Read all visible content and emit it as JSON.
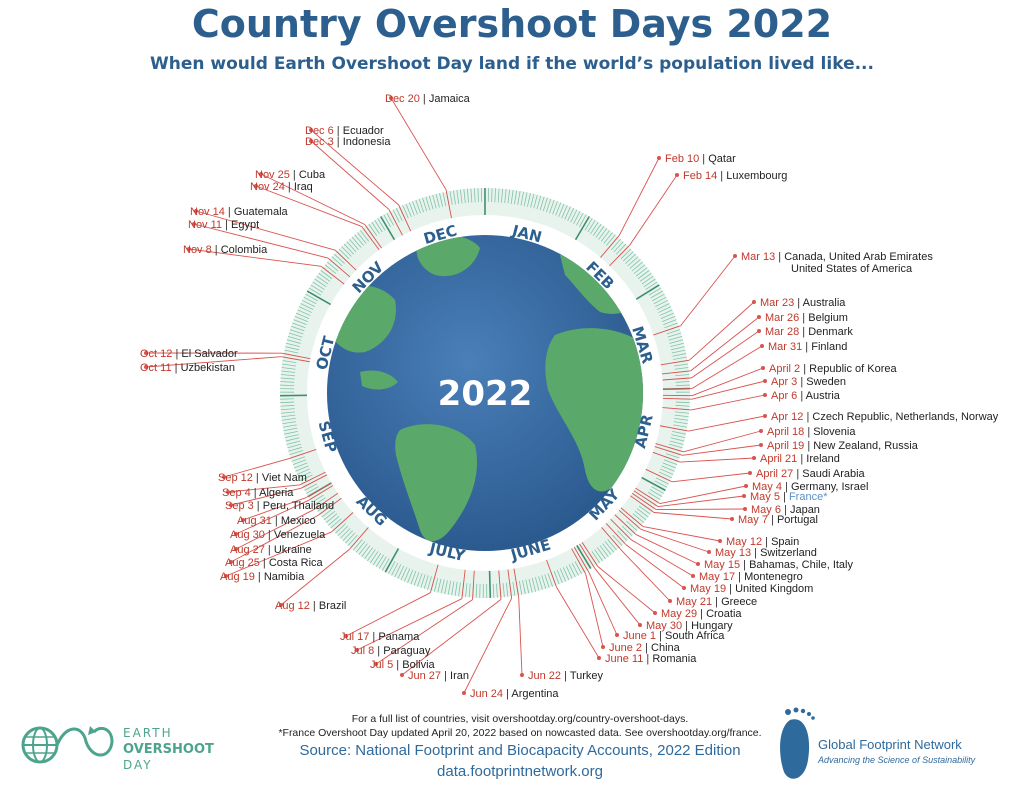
{
  "header": {
    "title": "Country Overshoot Days 2022",
    "subtitle": "When would Earth Overshoot Day land if the world’s population lived like..."
  },
  "center_label": "2022",
  "months": [
    "JAN",
    "FEB",
    "MAR",
    "APR",
    "MAY",
    "JUNE",
    "JULY",
    "AUG",
    "SEP",
    "OCT",
    "NOV",
    "DEC"
  ],
  "entries": [
    {
      "date": "Feb 10",
      "country": "Qatar",
      "day": 41
    },
    {
      "date": "Feb 14",
      "country": "Luxembourg",
      "day": 45
    },
    {
      "date": "Mar 13",
      "country": "Canada, United Arab Emirates",
      "country2": "United States of America",
      "day": 72
    },
    {
      "date": "Mar 23",
      "country": "Australia",
      "day": 82
    },
    {
      "date": "Mar 26",
      "country": "Belgium",
      "day": 85
    },
    {
      "date": "Mar 28",
      "country": "Denmark",
      "day": 87
    },
    {
      "date": "Mar 31",
      "country": "Finland",
      "day": 90
    },
    {
      "date": "April 2",
      "country": "Republic of Korea",
      "day": 92
    },
    {
      "date": "Apr 3",
      "country": "Sweden",
      "day": 93
    },
    {
      "date": "Apr 6",
      "country": "Austria",
      "day": 96
    },
    {
      "date": "Apr 12",
      "country": "Czech Republic, Netherlands, Norway",
      "day": 102
    },
    {
      "date": "April 18",
      "country": "Slovenia",
      "day": 108
    },
    {
      "date": "April 19",
      "country": "New Zealand, Russia",
      "day": 109
    },
    {
      "date": "April 21",
      "country": "Ireland",
      "day": 111
    },
    {
      "date": "April 27",
      "country": "Saudi Arabia",
      "day": 117
    },
    {
      "date": "May 4",
      "country": "Germany, Israel",
      "day": 124
    },
    {
      "date": "May 5",
      "country": "France*",
      "day": 125,
      "highlight": true
    },
    {
      "date": "May 6",
      "country": "Japan",
      "day": 126
    },
    {
      "date": "May 7",
      "country": "Portugal",
      "day": 127
    },
    {
      "date": "May 12",
      "country": "Spain",
      "day": 132
    },
    {
      "date": "May 13",
      "country": "Switzerland",
      "day": 133
    },
    {
      "date": "May 15",
      "country": "Bahamas, Chile, Italy",
      "day": 135
    },
    {
      "date": "May 17",
      "country": "Montenegro",
      "day": 137
    },
    {
      "date": "May 19",
      "country": "United Kingdom",
      "day": 139
    },
    {
      "date": "May 21",
      "country": "Greece",
      "day": 141
    },
    {
      "date": "May 29",
      "country": "Croatia",
      "day": 149
    },
    {
      "date": "May 30",
      "country": "Hungary",
      "day": 150
    },
    {
      "date": "June 1",
      "country": "South Africa",
      "day": 152
    },
    {
      "date": "June 2",
      "country": "China",
      "day": 153
    },
    {
      "date": "June 11",
      "country": "Romania",
      "day": 162
    },
    {
      "date": "Jun 22",
      "country": "Turkey",
      "day": 173
    },
    {
      "date": "Jun 24",
      "country": "Argentina",
      "day": 175
    },
    {
      "date": "Jun 27",
      "country": "Iran",
      "day": 178
    },
    {
      "date": "Jul 5",
      "country": "Bolivia",
      "day": 186
    },
    {
      "date": "Jul 8",
      "country": "Paraguay",
      "day": 189
    },
    {
      "date": "Jul 17",
      "country": "Panama",
      "day": 198
    },
    {
      "date": "Aug 12",
      "country": "Brazil",
      "day": 224
    },
    {
      "date": "Aug 19",
      "country": "Namibia",
      "day": 231
    },
    {
      "date": "Aug 25",
      "country": "Costa Rica",
      "day": 237
    },
    {
      "date": "Aug 27",
      "country": "Ukraine",
      "day": 239
    },
    {
      "date": "Aug 30",
      "country": "Venezuela",
      "day": 242
    },
    {
      "date": "Aug 31",
      "country": "Mexico",
      "day": 243
    },
    {
      "date": "Sep 3",
      "country": "Peru, Thailand",
      "day": 246
    },
    {
      "date": "Sep 4",
      "country": "Algeria",
      "day": 247
    },
    {
      "date": "Sep 12",
      "country": "Viet Nam",
      "day": 255
    },
    {
      "date": "Oct 11",
      "country": "Uzbekistan",
      "day": 284
    },
    {
      "date": "Oct 12",
      "country": "El Salvador",
      "day": 285
    },
    {
      "date": "Nov 8",
      "country": "Colombia",
      "day": 312
    },
    {
      "date": "Nov 11",
      "country": "Egypt",
      "day": 315
    },
    {
      "date": "Nov 14",
      "country": "Guatemala",
      "day": 318
    },
    {
      "date": "Nov 24",
      "country": "Iraq",
      "day": 328
    },
    {
      "date": "Nov 25",
      "country": "Cuba",
      "day": 329
    },
    {
      "date": "Dec 3",
      "country": "Indonesia",
      "day": 337
    },
    {
      "date": "Dec 6",
      "country": "Ecuador",
      "day": 340
    },
    {
      "date": "Dec 20",
      "country": "Jamaica",
      "day": 354
    }
  ],
  "footer": {
    "note1": "For a full list of countries, visit overshootday.org/country-overshoot-days.",
    "note2": "*France Overshoot Day updated April 20, 2022 based on nowcasted data. See overshootday.org/france.",
    "source": "Source: National Footprint and Biocapacity Accounts, 2022 Edition",
    "url": "data.footprintnetwork.org"
  },
  "logo_left": {
    "line1": "EARTH",
    "line2": "OVERSHOOT",
    "line3": "DAY"
  },
  "logo_right": {
    "name": "Global Footprint Network",
    "tagline": "Advancing the Science of Sustainability"
  },
  "colors": {
    "title_blue": "#2c5f8e",
    "date_red": "#c0392b",
    "leader_red": "#d9534f",
    "ring_green": "#7fc3a8",
    "ocean": "#3d6ea6",
    "land": "#5aa86a",
    "france_blue": "#5b8fc7",
    "logo_green": "#4da48c"
  }
}
